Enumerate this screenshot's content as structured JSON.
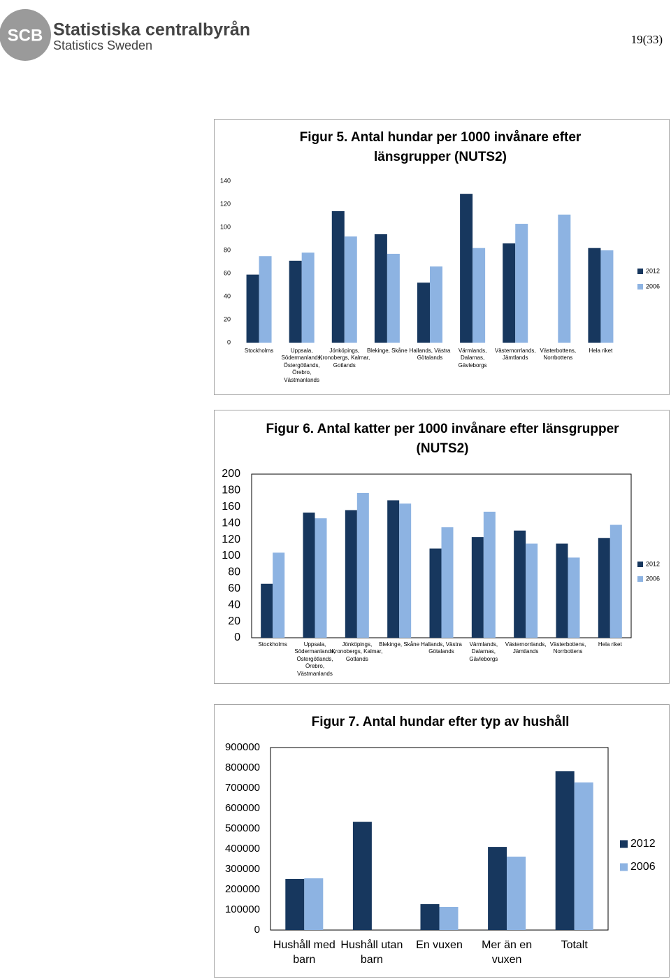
{
  "header": {
    "logo_mark": "SCB",
    "logo_title": "Statistiska centralbyrån",
    "logo_subtitle": "Statistics Sweden",
    "page_number": "19(33)"
  },
  "chart_data": [
    {
      "type": "bar",
      "title": "Figur 5. Antal hundar per 1000 invånare efter länsgrupper (NUTS2)",
      "categories": [
        "Stockholms",
        "Uppsala, Södermanlands, Östergötlands, Örebro, Västmanlands",
        "Jönköpings, Kronobergs, Kalmar, Gotlands",
        "Blekinge, Skåne",
        "Hallands, Västra Götalands",
        "Värmlands, Dalarnas, Gävleborgs",
        "Västernorrlands, Jämtlands",
        "Västerbottens, Norrbottens",
        "Hela riket"
      ],
      "series": [
        {
          "name": "2012",
          "color": "#17375e",
          "values": [
            59,
            71,
            114,
            94,
            52,
            129,
            86,
            null,
            82
          ]
        },
        {
          "name": "2006",
          "color": "#8db3e2",
          "values": [
            75,
            78,
            92,
            77,
            66,
            82,
            103,
            111,
            80
          ]
        }
      ],
      "ylim": [
        0,
        140
      ],
      "yticks": [
        0,
        20,
        40,
        60,
        80,
        100,
        120,
        140
      ],
      "grid": false,
      "legend": "right"
    },
    {
      "type": "bar",
      "title": "Figur 6. Antal katter per 1000 invånare efter länsgrupper (NUTS2)",
      "categories": [
        "Stockholms",
        "Uppsala, Södermanlands, Östergötlands, Örebro, Västmanlands",
        "Jönköpings, Kronobergs, Kalmar, Gotlands",
        "Blekinge, Skåne",
        "Hallands, Västra Götalands",
        "Värmlands, Dalarnas, Gävleborgs",
        "Västernorrlands, Jämtlands",
        "Västerbottens, Norrbottens",
        "Hela riket"
      ],
      "series": [
        {
          "name": "2012",
          "color": "#17375e",
          "values": [
            66,
            153,
            156,
            168,
            109,
            123,
            131,
            115,
            122
          ]
        },
        {
          "name": "2006",
          "color": "#8db3e2",
          "values": [
            104,
            146,
            177,
            164,
            135,
            154,
            115,
            98,
            138
          ]
        }
      ],
      "ylim": [
        0,
        200
      ],
      "yticks": [
        0,
        20,
        40,
        60,
        80,
        100,
        120,
        140,
        160,
        180,
        200
      ],
      "grid": false,
      "legend": "right"
    },
    {
      "type": "bar",
      "title": "Figur 7. Antal hundar efter typ av hushåll",
      "categories": [
        "Hushåll med barn",
        "Hushåll utan barn",
        "En vuxen",
        "Mer än en vuxen",
        "Totalt"
      ],
      "series": [
        {
          "name": "2012",
          "color": "#17375e",
          "values": [
            252000,
            534000,
            128000,
            410000,
            783000
          ]
        },
        {
          "name": "2006",
          "color": "#8db3e2",
          "values": [
            255000,
            null,
            114000,
            362000,
            728000
          ]
        }
      ],
      "ylim": [
        0,
        900000
      ],
      "yticks": [
        0,
        100000,
        200000,
        300000,
        400000,
        500000,
        600000,
        700000,
        800000,
        900000
      ],
      "grid": false,
      "legend": "right"
    }
  ]
}
